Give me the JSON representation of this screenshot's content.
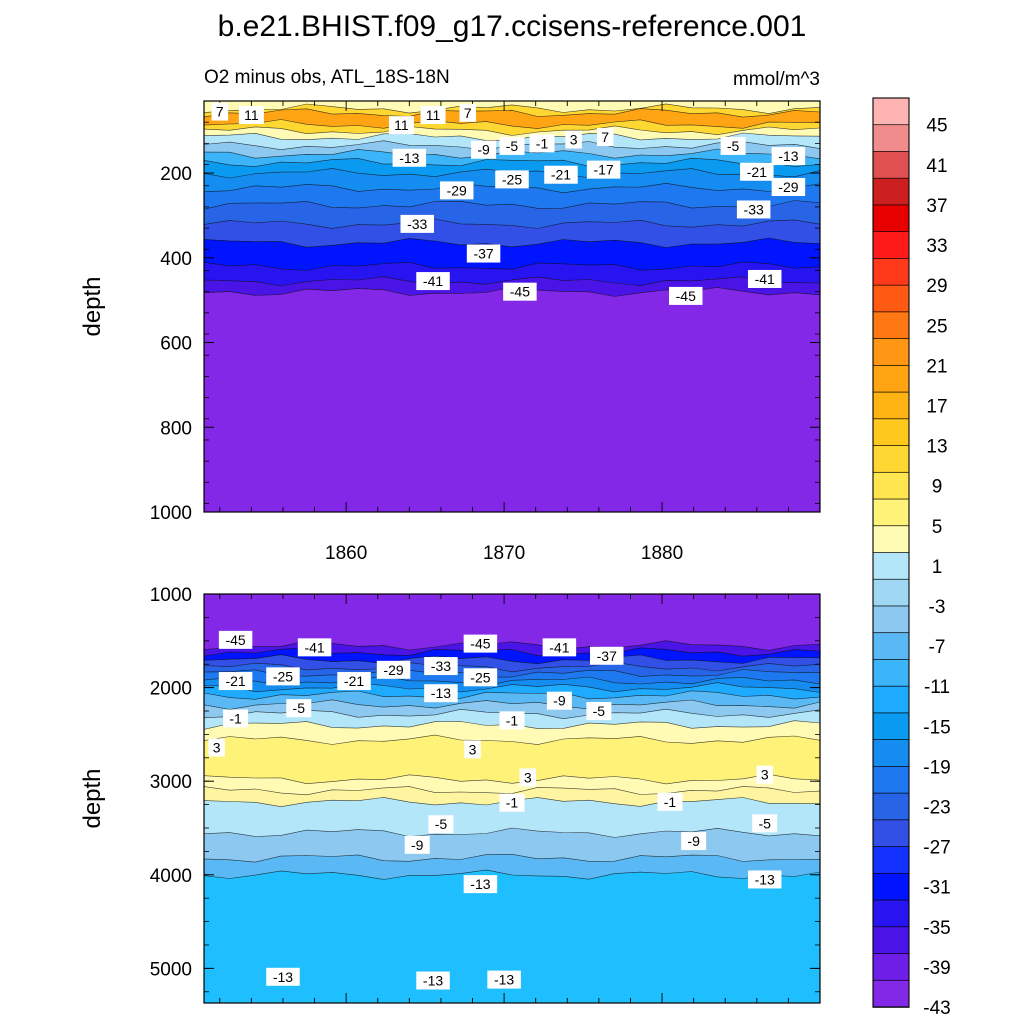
{
  "title": "b.e21.BHIST.f09_g17.ccisens-reference.001",
  "subtitle_left": "O2 minus obs, ATL_18S-18N",
  "subtitle_right": "mmol/m^3",
  "chart_data": {
    "type": "contour",
    "colorbar": {
      "labels": [
        "45",
        "41",
        "37",
        "33",
        "29",
        "25",
        "21",
        "17",
        "13",
        "9",
        "5",
        "1",
        "-3",
        "-7",
        "-11",
        "-15",
        "-19",
        "-23",
        "-27",
        "-31",
        "-35",
        "-39",
        "-43"
      ],
      "colors": [
        "#ffb4b4",
        "#f08c8c",
        "#e05050",
        "#cc2020",
        "#e60000",
        "#ff1a1a",
        "#ff3a1a",
        "#ff5a14",
        "#ff7814",
        "#ff9614",
        "#ffa514",
        "#ffb414",
        "#ffc81e",
        "#ffd732",
        "#ffe650",
        "#fff278",
        "#fffab4",
        "#b4e6fa",
        "#a0d7f5",
        "#8cc8f0",
        "#5ab9f5",
        "#3cb4fa",
        "#1eaaff",
        "#0a9af0",
        "#148cf0",
        "#1e78f0",
        "#2864e6",
        "#3250e6",
        "#1432ff",
        "#0014ff",
        "#2814f0",
        "#4b14e6",
        "#6e1ee6",
        "#8228e6"
      ]
    },
    "panels": [
      {
        "name": "upper",
        "ylabel": "depth",
        "yrange": [
          1000,
          30
        ],
        "yticks": [
          "200",
          "400",
          "600",
          "800",
          "1000"
        ],
        "xrange": [
          1851,
          1890
        ],
        "xticks": [
          "1860",
          "1870",
          "1880"
        ],
        "bands": [
          {
            "from": 30,
            "to": 48,
            "color": "#fffab4"
          },
          {
            "from": 48,
            "to": 58,
            "color": "#ffd732"
          },
          {
            "from": 58,
            "to": 85,
            "color": "#ffa514"
          },
          {
            "from": 85,
            "to": 100,
            "color": "#ffd732"
          },
          {
            "from": 100,
            "to": 115,
            "color": "#fffab4"
          },
          {
            "from": 115,
            "to": 135,
            "color": "#b4e6fa"
          },
          {
            "from": 135,
            "to": 155,
            "color": "#8cc8f0"
          },
          {
            "from": 155,
            "to": 175,
            "color": "#3cb4fa"
          },
          {
            "from": 175,
            "to": 200,
            "color": "#0a9af0"
          },
          {
            "from": 200,
            "to": 235,
            "color": "#148cf0"
          },
          {
            "from": 235,
            "to": 275,
            "color": "#1e78f0"
          },
          {
            "from": 275,
            "to": 320,
            "color": "#2864e6"
          },
          {
            "from": 320,
            "to": 365,
            "color": "#3250e6"
          },
          {
            "from": 365,
            "to": 420,
            "color": "#0014ff"
          },
          {
            "from": 420,
            "to": 455,
            "color": "#2814f0"
          },
          {
            "from": 455,
            "to": 480,
            "color": "#4b14e6"
          },
          {
            "from": 480,
            "to": 1000,
            "color": "#8228e6"
          }
        ],
        "labels": [
          {
            "t": "7",
            "x": 1852.0,
            "y": 55
          },
          {
            "t": "11",
            "x": 1854.0,
            "y": 63
          },
          {
            "t": "11",
            "x": 1865.5,
            "y": 63
          },
          {
            "t": "7",
            "x": 1867.7,
            "y": 58
          },
          {
            "t": "11",
            "x": 1863.5,
            "y": 87
          },
          {
            "t": "-9",
            "x": 1868.7,
            "y": 145
          },
          {
            "t": "-5",
            "x": 1870.5,
            "y": 136
          },
          {
            "t": "-1",
            "x": 1872.4,
            "y": 130
          },
          {
            "t": "3",
            "x": 1874.4,
            "y": 121
          },
          {
            "t": "7",
            "x": 1876.4,
            "y": 115
          },
          {
            "t": "-13",
            "x": 1864.0,
            "y": 164
          },
          {
            "t": "-5",
            "x": 1884.5,
            "y": 136
          },
          {
            "t": "-13",
            "x": 1888.0,
            "y": 160
          },
          {
            "t": "-17",
            "x": 1876.3,
            "y": 192
          },
          {
            "t": "-21",
            "x": 1873.6,
            "y": 204
          },
          {
            "t": "-25",
            "x": 1870.5,
            "y": 215
          },
          {
            "t": "-29",
            "x": 1867.0,
            "y": 241
          },
          {
            "t": "-21",
            "x": 1886.0,
            "y": 197
          },
          {
            "t": "-29",
            "x": 1888.0,
            "y": 233
          },
          {
            "t": "-33",
            "x": 1885.8,
            "y": 286
          },
          {
            "t": "-33",
            "x": 1864.5,
            "y": 320
          },
          {
            "t": "-37",
            "x": 1868.7,
            "y": 390
          },
          {
            "t": "-41",
            "x": 1865.5,
            "y": 455
          },
          {
            "t": "-45",
            "x": 1871.0,
            "y": 480
          },
          {
            "t": "-45",
            "x": 1881.5,
            "y": 490
          },
          {
            "t": "-41",
            "x": 1886.5,
            "y": 450
          }
        ]
      },
      {
        "name": "lower",
        "ylabel": "depth",
        "yrange": [
          5370,
          1000
        ],
        "yticks": [
          "1000",
          "2000",
          "3000",
          "4000",
          "5000"
        ],
        "xrange": [
          1851,
          1890
        ],
        "xticks": [],
        "bands": [
          {
            "from": 1000,
            "to": 1550,
            "color": "#8228e6"
          },
          {
            "from": 1550,
            "to": 1620,
            "color": "#4b14e6"
          },
          {
            "from": 1620,
            "to": 1700,
            "color": "#0014ff"
          },
          {
            "from": 1700,
            "to": 1780,
            "color": "#3250e6"
          },
          {
            "from": 1780,
            "to": 1850,
            "color": "#2864e6"
          },
          {
            "from": 1850,
            "to": 1930,
            "color": "#1e78f0"
          },
          {
            "from": 1930,
            "to": 2000,
            "color": "#148cf0"
          },
          {
            "from": 2000,
            "to": 2080,
            "color": "#1eaaff"
          },
          {
            "from": 2080,
            "to": 2180,
            "color": "#5ab9f5"
          },
          {
            "from": 2180,
            "to": 2280,
            "color": "#8cc8f0"
          },
          {
            "from": 2280,
            "to": 2400,
            "color": "#b4e6fa"
          },
          {
            "from": 2400,
            "to": 2560,
            "color": "#fffab4"
          },
          {
            "from": 2560,
            "to": 2980,
            "color": "#fff278"
          },
          {
            "from": 2980,
            "to": 3100,
            "color": "#fffab4"
          },
          {
            "from": 3100,
            "to": 3220,
            "color": "#fff5a0"
          },
          {
            "from": 3220,
            "to": 3550,
            "color": "#b4e6fa"
          },
          {
            "from": 3550,
            "to": 3820,
            "color": "#8cc8f0"
          },
          {
            "from": 3820,
            "to": 4000,
            "color": "#5ab9f5"
          },
          {
            "from": 4000,
            "to": 5370,
            "color": "#1ebeff"
          }
        ],
        "labels": [
          {
            "t": "-45",
            "x": 1853.0,
            "y": 1490
          },
          {
            "t": "-41",
            "x": 1858.0,
            "y": 1570
          },
          {
            "t": "-45",
            "x": 1868.5,
            "y": 1530
          },
          {
            "t": "-41",
            "x": 1873.5,
            "y": 1570
          },
          {
            "t": "-37",
            "x": 1876.5,
            "y": 1660
          },
          {
            "t": "-21",
            "x": 1853.0,
            "y": 1930
          },
          {
            "t": "-25",
            "x": 1856.0,
            "y": 1880
          },
          {
            "t": "-21",
            "x": 1860.5,
            "y": 1930
          },
          {
            "t": "-29",
            "x": 1863.0,
            "y": 1810
          },
          {
            "t": "-33",
            "x": 1866.0,
            "y": 1770
          },
          {
            "t": "-25",
            "x": 1868.5,
            "y": 1890
          },
          {
            "t": "-13",
            "x": 1866.0,
            "y": 2060
          },
          {
            "t": "-9",
            "x": 1873.5,
            "y": 2140
          },
          {
            "t": "-5",
            "x": 1876.0,
            "y": 2250
          },
          {
            "t": "-5",
            "x": 1857.0,
            "y": 2220
          },
          {
            "t": "-1",
            "x": 1853.0,
            "y": 2330
          },
          {
            "t": "-1",
            "x": 1870.5,
            "y": 2350
          },
          {
            "t": "3",
            "x": 1851.8,
            "y": 2640
          },
          {
            "t": "3",
            "x": 1868.0,
            "y": 2660
          },
          {
            "t": "3",
            "x": 1871.5,
            "y": 2960
          },
          {
            "t": "3",
            "x": 1886.5,
            "y": 2930
          },
          {
            "t": "-1",
            "x": 1870.5,
            "y": 3230
          },
          {
            "t": "-1",
            "x": 1880.5,
            "y": 3220
          },
          {
            "t": "-5",
            "x": 1866.0,
            "y": 3460
          },
          {
            "t": "-5",
            "x": 1886.5,
            "y": 3450
          },
          {
            "t": "-9",
            "x": 1864.5,
            "y": 3680
          },
          {
            "t": "-9",
            "x": 1882.0,
            "y": 3640
          },
          {
            "t": "-13",
            "x": 1868.5,
            "y": 4100
          },
          {
            "t": "-13",
            "x": 1886.5,
            "y": 4050
          },
          {
            "t": "-13",
            "x": 1856.0,
            "y": 5090
          },
          {
            "t": "-13",
            "x": 1865.5,
            "y": 5130
          },
          {
            "t": "-13",
            "x": 1870.0,
            "y": 5120
          }
        ]
      }
    ]
  }
}
